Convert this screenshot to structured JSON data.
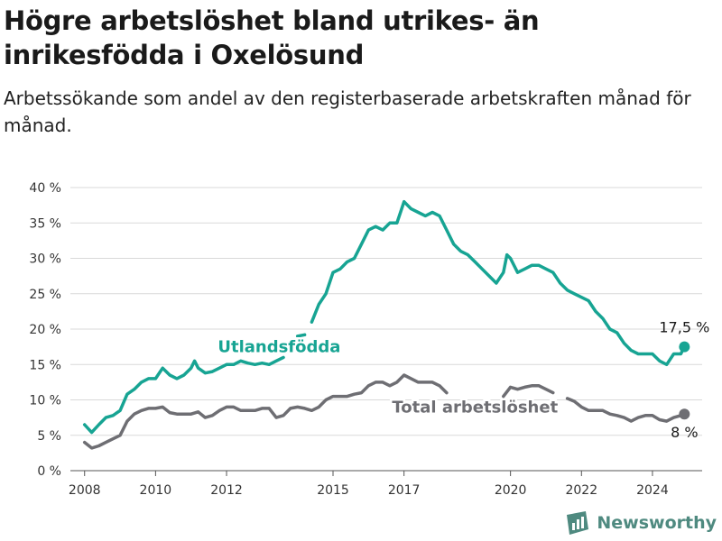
{
  "header": {
    "title": "Högre arbetslöshet bland utrikes- än inrikesfödda i Oxelösund",
    "subtitle": "Arbetssökande som andel av den registerbaserade arbetskraften månad för månad."
  },
  "brand": {
    "name": "Newsworthy",
    "icon": "bar-chart-logo-icon",
    "color": "#4f8a80"
  },
  "chart_data": {
    "type": "line",
    "x_ticks": [
      "2008",
      "2010",
      "2012",
      "2015",
      "2017",
      "2020",
      "2022",
      "2024"
    ],
    "y_ticks": [
      "0 %",
      "5 %",
      "10 %",
      "15 %",
      "20 %",
      "25 %",
      "30 %",
      "35 %",
      "40 %"
    ],
    "ylim": [
      0,
      40
    ],
    "xlim": [
      2007.6,
      2025.4
    ],
    "grid": true,
    "series": [
      {
        "name": "Utlandsfödda",
        "color": "#17a493",
        "end_label": "17,5 %",
        "points": [
          [
            2008.0,
            6.5
          ],
          [
            2008.2,
            5.4
          ],
          [
            2008.4,
            6.5
          ],
          [
            2008.6,
            7.5
          ],
          [
            2008.8,
            7.8
          ],
          [
            2009.0,
            8.5
          ],
          [
            2009.2,
            10.8
          ],
          [
            2009.4,
            11.5
          ],
          [
            2009.6,
            12.5
          ],
          [
            2009.8,
            13.0
          ],
          [
            2010.0,
            13.0
          ],
          [
            2010.2,
            14.5
          ],
          [
            2010.4,
            13.5
          ],
          [
            2010.6,
            13.0
          ],
          [
            2010.8,
            13.5
          ],
          [
            2011.0,
            14.5
          ],
          [
            2011.1,
            15.5
          ],
          [
            2011.2,
            14.5
          ],
          [
            2011.4,
            13.8
          ],
          [
            2011.6,
            14.0
          ],
          [
            2011.8,
            14.5
          ],
          [
            2012.0,
            15.0
          ],
          [
            2012.2,
            15.0
          ],
          [
            2012.4,
            15.5
          ],
          [
            2012.6,
            15.2
          ],
          [
            2012.8,
            15.0
          ],
          [
            2013.0,
            15.2
          ],
          [
            2013.2,
            15.0
          ],
          [
            2013.4,
            15.5
          ],
          [
            2013.6,
            16.0
          ],
          null,
          [
            2014.0,
            19.0
          ],
          [
            2014.2,
            19.2
          ],
          null,
          [
            2014.4,
            21.0
          ],
          [
            2014.6,
            23.5
          ],
          [
            2014.8,
            25.0
          ],
          [
            2015.0,
            28.0
          ],
          [
            2015.2,
            28.5
          ],
          [
            2015.4,
            29.5
          ],
          [
            2015.6,
            30.0
          ],
          [
            2015.8,
            32.0
          ],
          [
            2016.0,
            34.0
          ],
          [
            2016.2,
            34.5
          ],
          [
            2016.4,
            34.0
          ],
          [
            2016.6,
            35.0
          ],
          [
            2016.8,
            35.0
          ],
          [
            2017.0,
            38.0
          ],
          [
            2017.2,
            37.0
          ],
          [
            2017.4,
            36.5
          ],
          [
            2017.6,
            36.0
          ],
          [
            2017.8,
            36.5
          ],
          [
            2018.0,
            36.0
          ],
          [
            2018.2,
            34.0
          ],
          [
            2018.4,
            32.0
          ],
          [
            2018.6,
            31.0
          ],
          [
            2018.8,
            30.5
          ],
          [
            2019.0,
            29.5
          ],
          [
            2019.2,
            28.5
          ],
          [
            2019.4,
            27.5
          ],
          [
            2019.6,
            26.5
          ],
          [
            2019.8,
            28.0
          ],
          [
            2019.9,
            30.5
          ],
          [
            2020.0,
            30.0
          ],
          [
            2020.2,
            28.0
          ],
          [
            2020.4,
            28.5
          ],
          [
            2020.6,
            29.0
          ],
          [
            2020.8,
            29.0
          ],
          [
            2021.0,
            28.5
          ],
          [
            2021.2,
            28.0
          ],
          [
            2021.4,
            26.5
          ],
          [
            2021.6,
            25.5
          ],
          [
            2021.8,
            25.0
          ],
          [
            2022.0,
            24.5
          ],
          [
            2022.2,
            24.0
          ],
          [
            2022.4,
            22.5
          ],
          [
            2022.6,
            21.5
          ],
          [
            2022.8,
            20.0
          ],
          [
            2023.0,
            19.5
          ],
          [
            2023.2,
            18.0
          ],
          [
            2023.4,
            17.0
          ],
          [
            2023.6,
            16.5
          ],
          [
            2023.8,
            16.5
          ],
          [
            2024.0,
            16.5
          ],
          [
            2024.2,
            15.5
          ],
          [
            2024.4,
            15.0
          ],
          [
            2024.6,
            16.5
          ],
          [
            2024.8,
            16.5
          ],
          [
            2024.9,
            17.5
          ]
        ]
      },
      {
        "name": "Total arbetslöshet",
        "color": "#6e6e73",
        "end_label": "8 %",
        "points": [
          [
            2008.0,
            4.0
          ],
          [
            2008.2,
            3.2
          ],
          [
            2008.4,
            3.5
          ],
          [
            2008.6,
            4.0
          ],
          [
            2008.8,
            4.5
          ],
          [
            2009.0,
            5.0
          ],
          [
            2009.2,
            7.0
          ],
          [
            2009.4,
            8.0
          ],
          [
            2009.6,
            8.5
          ],
          [
            2009.8,
            8.8
          ],
          [
            2010.0,
            8.8
          ],
          [
            2010.2,
            9.0
          ],
          [
            2010.4,
            8.2
          ],
          [
            2010.6,
            8.0
          ],
          [
            2010.8,
            8.0
          ],
          [
            2011.0,
            8.0
          ],
          [
            2011.2,
            8.3
          ],
          [
            2011.4,
            7.5
          ],
          [
            2011.6,
            7.8
          ],
          [
            2011.8,
            8.5
          ],
          [
            2012.0,
            9.0
          ],
          [
            2012.2,
            9.0
          ],
          [
            2012.4,
            8.5
          ],
          [
            2012.6,
            8.5
          ],
          [
            2012.8,
            8.5
          ],
          [
            2013.0,
            8.8
          ],
          [
            2013.2,
            8.8
          ],
          [
            2013.4,
            7.5
          ],
          [
            2013.6,
            7.8
          ],
          [
            2013.8,
            8.8
          ],
          [
            2014.0,
            9.0
          ],
          [
            2014.2,
            8.8
          ],
          [
            2014.4,
            8.5
          ],
          [
            2014.6,
            9.0
          ],
          [
            2014.8,
            10.0
          ],
          [
            2015.0,
            10.5
          ],
          [
            2015.2,
            10.5
          ],
          [
            2015.4,
            10.5
          ],
          [
            2015.6,
            10.8
          ],
          [
            2015.8,
            11.0
          ],
          [
            2016.0,
            12.0
          ],
          [
            2016.2,
            12.5
          ],
          [
            2016.4,
            12.5
          ],
          [
            2016.6,
            12.0
          ],
          [
            2016.8,
            12.5
          ],
          [
            2017.0,
            13.5
          ],
          [
            2017.2,
            13.0
          ],
          [
            2017.4,
            12.5
          ],
          [
            2017.6,
            12.5
          ],
          [
            2017.8,
            12.5
          ],
          [
            2018.0,
            12.0
          ],
          [
            2018.2,
            11.0
          ],
          null,
          [
            2019.8,
            10.5
          ],
          [
            2020.0,
            11.8
          ],
          [
            2020.2,
            11.5
          ],
          [
            2020.4,
            11.8
          ],
          [
            2020.6,
            12.0
          ],
          [
            2020.8,
            12.0
          ],
          [
            2021.0,
            11.5
          ],
          [
            2021.2,
            11.0
          ],
          null,
          [
            2021.6,
            10.2
          ],
          [
            2021.8,
            9.8
          ],
          [
            2022.0,
            9.0
          ],
          [
            2022.2,
            8.5
          ],
          [
            2022.4,
            8.5
          ],
          [
            2022.6,
            8.5
          ],
          [
            2022.8,
            8.0
          ],
          [
            2023.0,
            7.8
          ],
          [
            2023.2,
            7.5
          ],
          [
            2023.4,
            7.0
          ],
          [
            2023.6,
            7.5
          ],
          [
            2023.8,
            7.8
          ],
          [
            2024.0,
            7.8
          ],
          [
            2024.2,
            7.2
          ],
          [
            2024.4,
            7.0
          ],
          [
            2024.6,
            7.5
          ],
          [
            2024.8,
            7.8
          ],
          [
            2024.9,
            8.0
          ]
        ]
      }
    ]
  }
}
